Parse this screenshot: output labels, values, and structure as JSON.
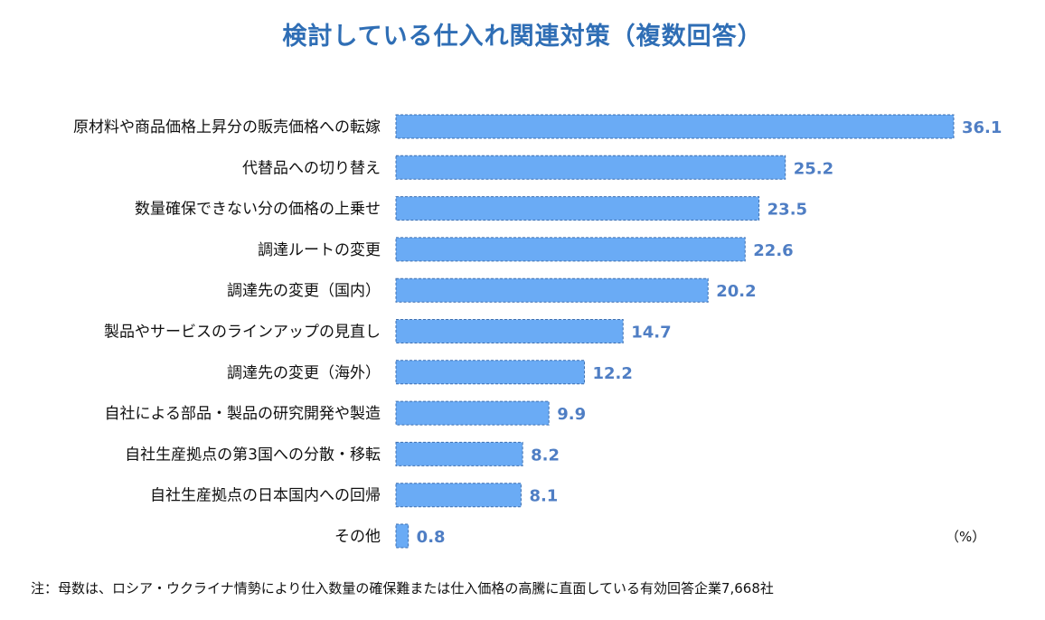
{
  "chart_data": {
    "type": "bar",
    "orientation": "horizontal",
    "title": "検討している仕入れ関連対策（複数回答）",
    "unit_label": "（%）",
    "categories": [
      "原材料や商品価格上昇分の販売価格への転嫁",
      "代替品への切り替え",
      "数量確保できない分の価格の上乗せ",
      "調達ルートの変更",
      "調達先の変更（国内）",
      "製品やサービスのラインアップの見直し",
      "調達先の変更（海外）",
      "自社による部品・製品の研究開発や製造",
      "自社生産拠点の第3国への分散・移転",
      "自社生産拠点の日本国内への回帰",
      "その他"
    ],
    "values": [
      36.1,
      25.2,
      23.5,
      22.6,
      20.2,
      14.7,
      12.2,
      9.9,
      8.2,
      8.1,
      0.8
    ],
    "value_labels": [
      "36.1",
      "25.2",
      "23.5",
      "22.6",
      "20.2",
      "14.7",
      "12.2",
      "9.9",
      "8.2",
      "8.1",
      "0.8"
    ],
    "bar_color": "#6aabf5",
    "bar_border_color": "#3e6fb0",
    "value_label_color": "#4f7ec4",
    "title_color": "#2f6eb5",
    "grid": false,
    "legend": "none",
    "xlim": [
      0,
      36.1
    ]
  },
  "note": "注：母数は、ロシア・ウクライナ情勢により仕入数量の確保難または仕入価格の高騰に直面している有効回答企業7,668社"
}
